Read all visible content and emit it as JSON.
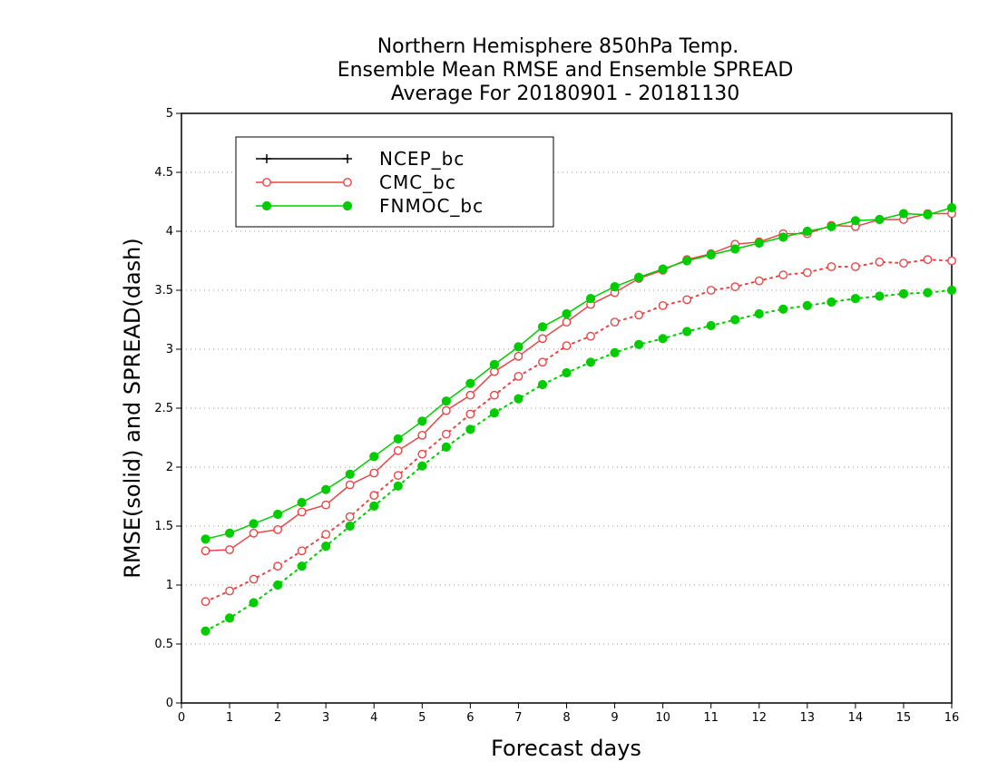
{
  "chart_data": {
    "type": "line",
    "title": [
      "Northern Hemisphere 850hPa Temp.",
      "Ensemble Mean RMSE and Ensemble SPREAD",
      "Average For 20180901 - 20181130"
    ],
    "xlabel": "Forecast days",
    "ylabel": "RMSE(solid) and SPREAD(dash)",
    "xlim": [
      0,
      16
    ],
    "ylim": [
      0,
      5
    ],
    "xticks": [
      "0",
      "1",
      "2",
      "3",
      "4",
      "5",
      "6",
      "7",
      "8",
      "9",
      "10",
      "11",
      "12",
      "13",
      "14",
      "15",
      "16"
    ],
    "yticks": [
      "0",
      "0.5",
      "1",
      "1.5",
      "2",
      "2.5",
      "3",
      "3.5",
      "4",
      "4.5",
      "5"
    ],
    "grid": "horizontal dotted",
    "legend_position": "top-left",
    "x": [
      0.5,
      1,
      1.5,
      2,
      2.5,
      3,
      3.5,
      4,
      4.5,
      5,
      5.5,
      6,
      6.5,
      7,
      7.5,
      8,
      8.5,
      9,
      9.5,
      10,
      10.5,
      11,
      11.5,
      12,
      12.5,
      13,
      13.5,
      14,
      14.5,
      15,
      15.5,
      16
    ],
    "series": [
      {
        "name": "NCEP_bc",
        "color": "#000000",
        "marker": "plus",
        "rmse": [],
        "spread": []
      },
      {
        "name": "CMC_bc",
        "color": "#e84646",
        "marker": "open-circle",
        "rmse": [
          1.29,
          1.3,
          1.44,
          1.47,
          1.62,
          1.68,
          1.85,
          1.95,
          2.14,
          2.27,
          2.48,
          2.61,
          2.81,
          2.94,
          3.09,
          3.23,
          3.38,
          3.48,
          3.6,
          3.67,
          3.76,
          3.81,
          3.89,
          3.91,
          3.98,
          3.98,
          4.05,
          4.04,
          4.1,
          4.1,
          4.15,
          4.15
        ],
        "spread": [
          0.86,
          0.95,
          1.05,
          1.16,
          1.29,
          1.43,
          1.58,
          1.76,
          1.93,
          2.11,
          2.28,
          2.45,
          2.61,
          2.77,
          2.89,
          3.03,
          3.11,
          3.23,
          3.29,
          3.37,
          3.42,
          3.5,
          3.53,
          3.58,
          3.63,
          3.65,
          3.7,
          3.7,
          3.74,
          3.73,
          3.76,
          3.75
        ]
      },
      {
        "name": "FNMOC_bc",
        "color": "#00cc00",
        "marker": "filled-circle",
        "rmse": [
          1.39,
          1.44,
          1.52,
          1.6,
          1.7,
          1.81,
          1.94,
          2.09,
          2.24,
          2.39,
          2.56,
          2.71,
          2.87,
          3.02,
          3.19,
          3.3,
          3.43,
          3.53,
          3.61,
          3.68,
          3.75,
          3.8,
          3.85,
          3.9,
          3.95,
          4.0,
          4.04,
          4.09,
          4.1,
          4.15,
          4.14,
          4.2
        ],
        "spread": [
          0.61,
          0.72,
          0.85,
          1.0,
          1.16,
          1.33,
          1.5,
          1.67,
          1.84,
          2.01,
          2.17,
          2.32,
          2.46,
          2.58,
          2.7,
          2.8,
          2.89,
          2.97,
          3.04,
          3.09,
          3.15,
          3.2,
          3.25,
          3.3,
          3.34,
          3.37,
          3.4,
          3.43,
          3.45,
          3.47,
          3.48,
          3.5
        ]
      }
    ]
  }
}
